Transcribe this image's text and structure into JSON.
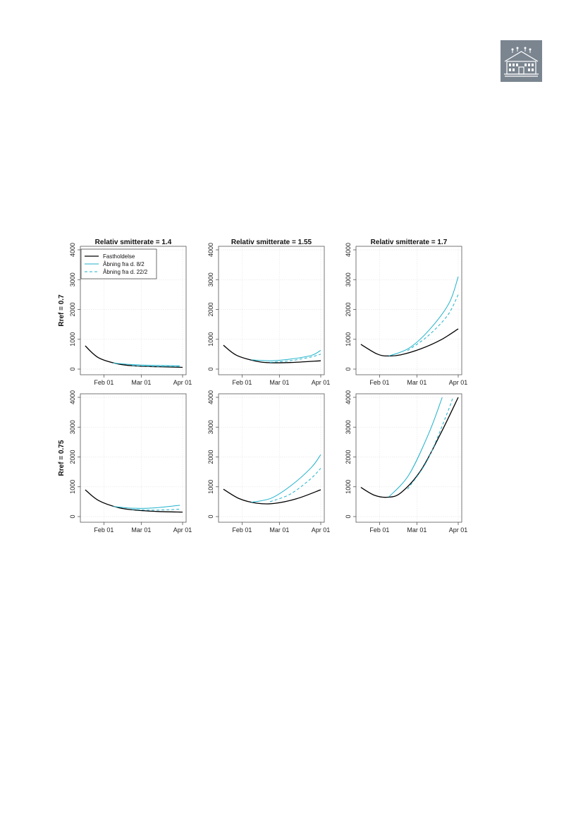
{
  "colors": {
    "fastholdelse": "#000000",
    "abning_8_2": "#1fb2cc",
    "abning_22_2": "#1fb2cc",
    "grid": "#e9e9e9",
    "logo_bg": "#7a8590"
  },
  "logo": {
    "icon": "building-icon"
  },
  "chart_data": {
    "type": "line",
    "layout": "2x3 grid",
    "legend": {
      "placement": "top-left of first panel",
      "entries": [
        "Fastholdelse",
        "Åbning fra d. 8/2",
        "Åbning fra d. 22/2"
      ]
    },
    "column_titles": [
      "Relativ smitterate = 1.4",
      "Relativ smitterate = 1.55",
      "Relativ smitterate = 1.7"
    ],
    "row_labels": [
      "Rref = 0.7",
      "Rref = 0.75"
    ],
    "x_ticks": [
      "Feb 01",
      "Mar 01",
      "Apr 01"
    ],
    "x_range": [
      "2021-01-17",
      "2021-04-01"
    ],
    "y_ticks": [
      "0",
      "1000",
      "2000",
      "3000",
      "4000"
    ],
    "ylim": [
      0,
      4000
    ],
    "grid": true,
    "panels": [
      {
        "row": 0,
        "col": 0,
        "series": [
          {
            "name": "Fastholdelse",
            "style": "solid-black",
            "start": "2021-01-18",
            "points": [
              [
                0,
                780
              ],
              [
                10,
                380
              ],
              [
                25,
                170
              ],
              [
                40,
                100
              ],
              [
                55,
                80
              ],
              [
                73,
                60
              ]
            ]
          },
          {
            "name": "Åbning fra d. 8/2",
            "style": "solid-cyan",
            "start": "2021-02-08",
            "points": [
              [
                0,
                200
              ],
              [
                15,
                150
              ],
              [
                30,
                125
              ],
              [
                50,
                110
              ]
            ]
          },
          {
            "name": "Åbning fra d. 22/2",
            "style": "dashed-cyan",
            "start": "2021-02-22",
            "points": [
              [
                0,
                120
              ],
              [
                15,
                95
              ],
              [
                30,
                90
              ],
              [
                36,
                90
              ]
            ]
          }
        ]
      },
      {
        "row": 0,
        "col": 1,
        "series": [
          {
            "name": "Fastholdelse",
            "style": "solid-black",
            "start": "2021-01-18",
            "points": [
              [
                0,
                800
              ],
              [
                10,
                460
              ],
              [
                25,
                260
              ],
              [
                35,
                215
              ],
              [
                50,
                220
              ],
              [
                73,
                280
              ]
            ]
          },
          {
            "name": "Åbning fra d. 8/2",
            "style": "solid-cyan",
            "start": "2021-02-08",
            "points": [
              [
                0,
                310
              ],
              [
                15,
                280
              ],
              [
                30,
                340
              ],
              [
                45,
                460
              ],
              [
                52,
                630
              ]
            ]
          },
          {
            "name": "Åbning fra d. 22/2",
            "style": "dashed-cyan",
            "start": "2021-02-22",
            "points": [
              [
                0,
                225
              ],
              [
                15,
                280
              ],
              [
                30,
                400
              ],
              [
                38,
                500
              ]
            ]
          }
        ]
      },
      {
        "row": 0,
        "col": 2,
        "series": [
          {
            "name": "Fastholdelse",
            "style": "solid-black",
            "start": "2021-01-18",
            "points": [
              [
                0,
                830
              ],
              [
                12,
                510
              ],
              [
                20,
                440
              ],
              [
                30,
                480
              ],
              [
                45,
                680
              ],
              [
                60,
                980
              ],
              [
                73,
                1350
              ]
            ]
          },
          {
            "name": "Åbning fra d. 8/2",
            "style": "solid-cyan",
            "start": "2021-02-08",
            "points": [
              [
                0,
                440
              ],
              [
                15,
                700
              ],
              [
                30,
                1300
              ],
              [
                45,
                2200
              ],
              [
                52,
                3100
              ]
            ]
          },
          {
            "name": "Åbning fra d. 22/2",
            "style": "dashed-cyan",
            "start": "2021-02-22",
            "points": [
              [
                0,
                620
              ],
              [
                15,
                1100
              ],
              [
                30,
                1800
              ],
              [
                38,
                2500
              ]
            ]
          }
        ]
      },
      {
        "row": 1,
        "col": 0,
        "series": [
          {
            "name": "Fastholdelse",
            "style": "solid-black",
            "start": "2021-01-18",
            "points": [
              [
                0,
                900
              ],
              [
                10,
                540
              ],
              [
                25,
                300
              ],
              [
                40,
                210
              ],
              [
                55,
                170
              ],
              [
                73,
                150
              ]
            ]
          },
          {
            "name": "Åbning fra d. 8/2",
            "style": "solid-cyan",
            "start": "2021-02-08",
            "points": [
              [
                0,
                340
              ],
              [
                15,
                280
              ],
              [
                30,
                290
              ],
              [
                50,
                380
              ]
            ]
          },
          {
            "name": "Åbning fra d. 22/2",
            "style": "dashed-cyan",
            "start": "2021-02-22",
            "points": [
              [
                0,
                240
              ],
              [
                15,
                215
              ],
              [
                30,
                235
              ],
              [
                36,
                250
              ]
            ]
          }
        ]
      },
      {
        "row": 1,
        "col": 1,
        "series": [
          {
            "name": "Fastholdelse",
            "style": "solid-black",
            "start": "2021-01-18",
            "points": [
              [
                0,
                920
              ],
              [
                12,
                600
              ],
              [
                25,
                450
              ],
              [
                38,
                440
              ],
              [
                55,
                600
              ],
              [
                73,
                900
              ]
            ]
          },
          {
            "name": "Åbning fra d. 8/2",
            "style": "solid-cyan",
            "start": "2021-02-08",
            "points": [
              [
                0,
                480
              ],
              [
                15,
                620
              ],
              [
                30,
                1050
              ],
              [
                45,
                1650
              ],
              [
                52,
                2080
              ]
            ]
          },
          {
            "name": "Åbning fra d. 22/2",
            "style": "dashed-cyan",
            "start": "2021-02-22",
            "points": [
              [
                0,
                500
              ],
              [
                15,
                750
              ],
              [
                30,
                1250
              ],
              [
                38,
                1620
              ]
            ]
          }
        ]
      },
      {
        "row": 1,
        "col": 2,
        "series": [
          {
            "name": "Fastholdelse",
            "style": "solid-black",
            "start": "2021-01-18",
            "points": [
              [
                0,
                980
              ],
              [
                10,
                720
              ],
              [
                20,
                650
              ],
              [
                30,
                800
              ],
              [
                45,
                1550
              ],
              [
                60,
                2800
              ],
              [
                73,
                4000
              ]
            ]
          },
          {
            "name": "Åbning fra d. 8/2",
            "style": "solid-cyan",
            "start": "2021-02-08",
            "points": [
              [
                0,
                660
              ],
              [
                15,
                1400
              ],
              [
                30,
                2800
              ],
              [
                40,
                4000
              ]
            ]
          },
          {
            "name": "Åbning fra d. 22/2",
            "style": "dashed-cyan",
            "start": "2021-02-22",
            "points": [
              [
                0,
                920
              ],
              [
                15,
                1900
              ],
              [
                30,
                3500
              ],
              [
                34,
                4000
              ]
            ]
          }
        ]
      }
    ]
  }
}
